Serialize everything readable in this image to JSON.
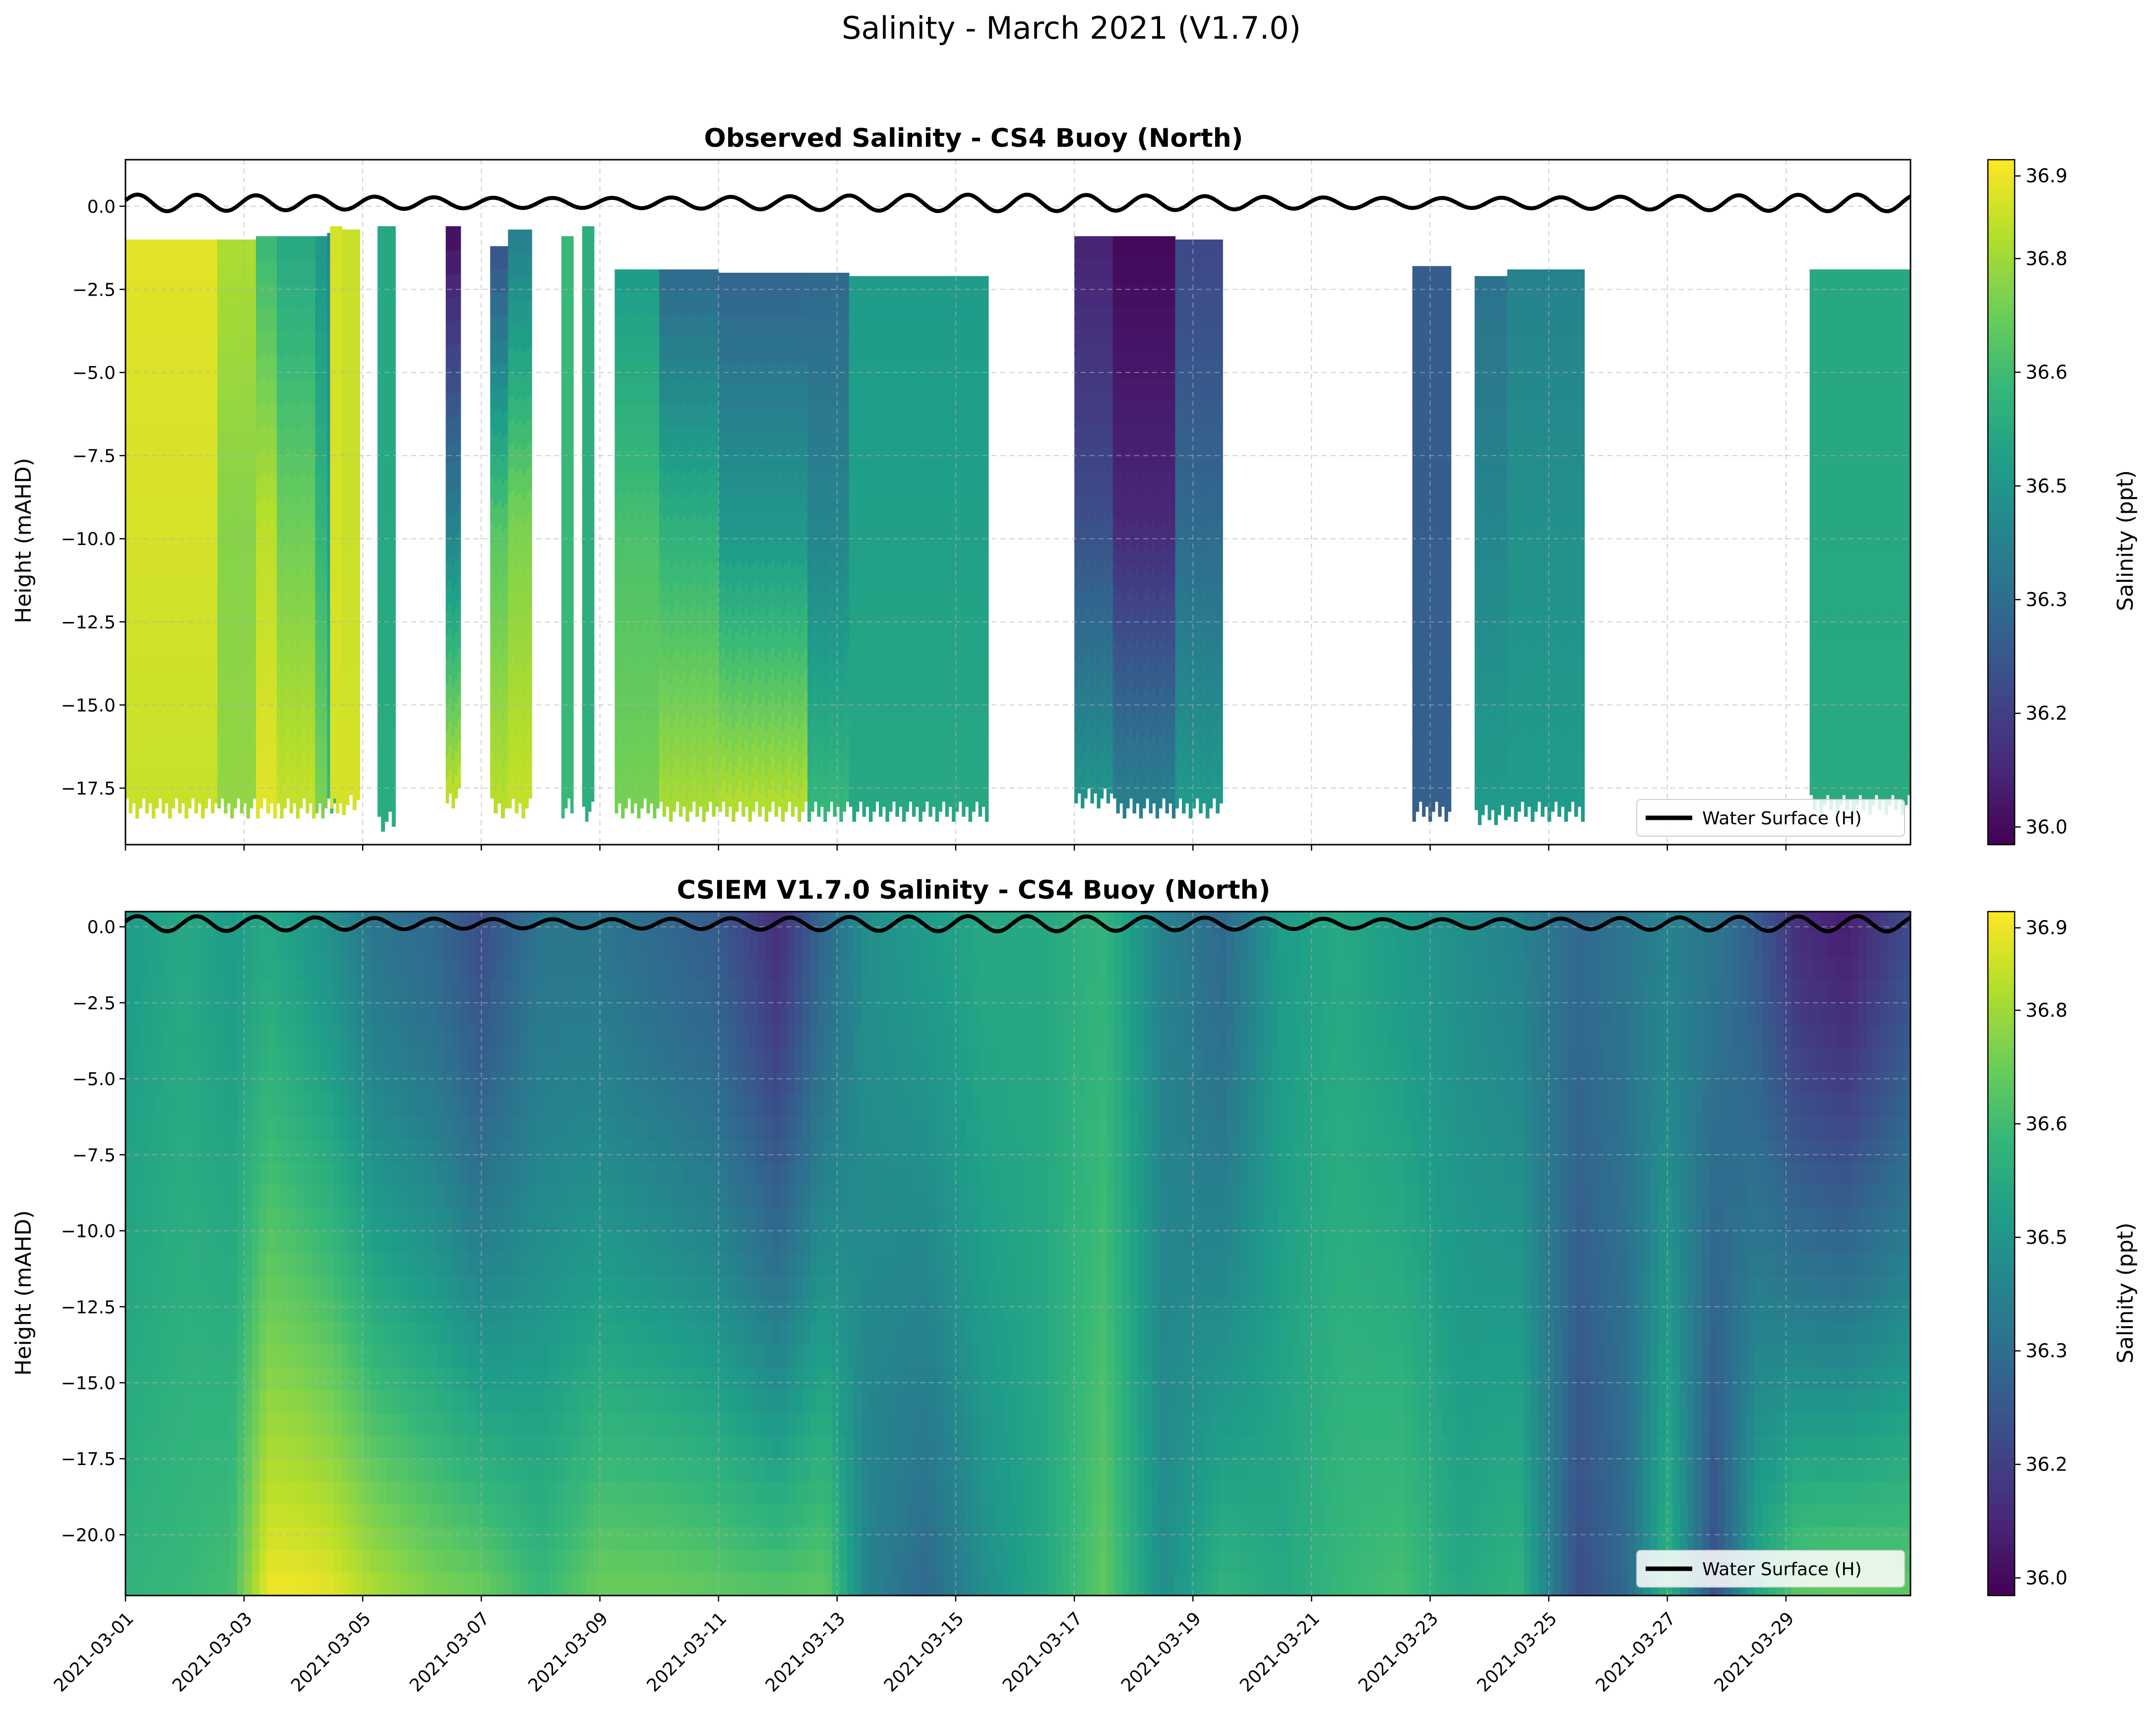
{
  "figure": {
    "title": "Salinity - March 2021 (V1.7.0)"
  },
  "chart_data": [
    {
      "type": "heatmap",
      "title": "Observed Salinity - CS4 Buoy (North)",
      "xlabel": "",
      "ylabel": "Height (mAHD)",
      "x_range_days": [
        0,
        30.1
      ],
      "ylim": [
        -19.2,
        1.4
      ],
      "yticks": [
        0.0,
        -2.5,
        -5.0,
        -7.5,
        -10.0,
        -12.5,
        -15.0,
        -17.5
      ],
      "ytick_labels": [
        "0.0",
        "−2.5",
        "−5.0",
        "−7.5",
        "−10.0",
        "−12.5",
        "−15.0",
        "−17.5"
      ],
      "grid": true,
      "colorbar": {
        "label": "Salinity (ppt)",
        "range": [
          35.97,
          36.94
        ],
        "ticks": [
          "36.0",
          "36.2",
          "36.3",
          "36.5",
          "36.6",
          "36.8",
          "36.9"
        ],
        "tick_values": [
          35.995,
          36.156,
          36.317,
          36.478,
          36.639,
          36.8,
          36.917
        ],
        "colormap": [
          "#440154",
          "#482878",
          "#3e4989",
          "#31688e",
          "#26828e",
          "#1f9e89",
          "#35b779",
          "#6ece58",
          "#b5de2b",
          "#fde725"
        ]
      },
      "legend": {
        "label": "Water Surface (H)",
        "location": "lower right",
        "color": "#000000"
      },
      "water_surface": {
        "mean": 0.1,
        "amplitude": 0.25,
        "period_days": 1.0
      },
      "observation_segments": [
        {
          "start": 0.0,
          "end": 1.55,
          "top": -1.0,
          "bottom": -17.8,
          "values": [
            36.9,
            36.88,
            36.86
          ]
        },
        {
          "start": 1.55,
          "end": 2.2,
          "top": -1.0,
          "bottom": -17.8,
          "values": [
            36.82,
            36.76,
            36.78
          ]
        },
        {
          "start": 2.2,
          "end": 2.55,
          "top": -0.9,
          "bottom": -17.8,
          "values": [
            36.62,
            36.84,
            36.9
          ]
        },
        {
          "start": 2.55,
          "end": 3.2,
          "top": -0.9,
          "bottom": -17.8,
          "values": [
            36.55,
            36.72,
            36.86
          ]
        },
        {
          "start": 3.2,
          "end": 3.45,
          "top": -0.9,
          "bottom": -17.8,
          "values": [
            36.48,
            36.6,
            36.75
          ]
        },
        {
          "start": 3.4,
          "end": 3.55,
          "top": -0.8,
          "bottom": -17.8,
          "values": [
            36.42,
            36.52,
            36.62
          ]
        },
        {
          "start": 3.45,
          "end": 3.65,
          "top": -0.6,
          "bottom": -17.8,
          "values": [
            36.88,
            36.88,
            36.88
          ]
        },
        {
          "start": 3.65,
          "end": 3.95,
          "top": -0.7,
          "bottom": -17.7,
          "values": [
            36.86,
            36.86,
            36.88
          ]
        },
        {
          "start": 4.25,
          "end": 4.55,
          "top": -0.6,
          "bottom": -18.2,
          "values": [
            36.55,
            36.55,
            36.57
          ]
        },
        {
          "start": 5.4,
          "end": 5.65,
          "top": -0.6,
          "bottom": -17.5,
          "values": [
            36.0,
            36.38,
            36.86
          ]
        },
        {
          "start": 6.15,
          "end": 6.45,
          "top": -1.2,
          "bottom": -17.8,
          "values": [
            36.22,
            36.68,
            36.84
          ]
        },
        {
          "start": 6.45,
          "end": 6.85,
          "top": -0.7,
          "bottom": -17.8,
          "values": [
            36.38,
            36.74,
            36.86
          ]
        },
        {
          "start": 7.35,
          "end": 7.55,
          "top": -0.9,
          "bottom": -17.8,
          "values": [
            36.62,
            36.62,
            36.62
          ]
        },
        {
          "start": 7.7,
          "end": 7.9,
          "top": -0.6,
          "bottom": -17.9,
          "values": [
            36.58,
            36.58,
            36.58
          ]
        },
        {
          "start": 8.25,
          "end": 9.0,
          "top": -1.9,
          "bottom": -17.8,
          "values": [
            36.5,
            36.66,
            36.74
          ]
        },
        {
          "start": 9.0,
          "end": 10.0,
          "top": -1.9,
          "bottom": -17.9,
          "values": [
            36.3,
            36.6,
            36.82
          ]
        },
        {
          "start": 10.0,
          "end": 11.5,
          "top": -2.0,
          "bottom": -17.9,
          "values": [
            36.28,
            36.5,
            36.84
          ]
        },
        {
          "start": 11.5,
          "end": 12.2,
          "top": -2.0,
          "bottom": -17.9,
          "values": [
            36.3,
            36.42,
            36.62
          ]
        },
        {
          "start": 12.2,
          "end": 14.55,
          "top": -2.1,
          "bottom": -17.9,
          "values": [
            36.5,
            36.52,
            36.55
          ]
        },
        {
          "start": 16.0,
          "end": 16.65,
          "top": -0.9,
          "bottom": -17.5,
          "values": [
            36.06,
            36.2,
            36.48
          ]
        },
        {
          "start": 16.65,
          "end": 17.7,
          "top": -0.9,
          "bottom": -17.8,
          "values": [
            35.99,
            36.08,
            36.4
          ]
        },
        {
          "start": 17.7,
          "end": 18.5,
          "top": -1.0,
          "bottom": -17.8,
          "values": [
            36.18,
            36.3,
            36.5
          ]
        },
        {
          "start": 21.7,
          "end": 22.35,
          "top": -1.8,
          "bottom": -17.9,
          "values": [
            36.26,
            36.26,
            36.27
          ]
        },
        {
          "start": 22.75,
          "end": 23.3,
          "top": -2.1,
          "bottom": -18.0,
          "values": [
            36.34,
            36.42,
            36.5
          ]
        },
        {
          "start": 23.3,
          "end": 24.6,
          "top": -1.9,
          "bottom": -17.9,
          "values": [
            36.4,
            36.46,
            36.5
          ]
        },
        {
          "start": 28.4,
          "end": 30.1,
          "top": -1.9,
          "bottom": -17.7,
          "values": [
            36.55,
            36.55,
            36.56
          ]
        }
      ]
    },
    {
      "type": "heatmap",
      "title": "CSIEM V1.7.0 Salinity - CS4 Buoy (North)",
      "xlabel": "",
      "ylabel": "Height (mAHD)",
      "x_range_days": [
        0,
        30.1
      ],
      "ylim": [
        -22.0,
        0.5
      ],
      "yticks": [
        0.0,
        -2.5,
        -5.0,
        -7.5,
        -10.0,
        -12.5,
        -15.0,
        -17.5,
        -20.0
      ],
      "ytick_labels": [
        "0.0",
        "−2.5",
        "−5.0",
        "−7.5",
        "−10.0",
        "−12.5",
        "−15.0",
        "−17.5",
        "−20.0"
      ],
      "xticks_days": [
        0,
        2,
        4,
        6,
        8,
        10,
        12,
        14,
        16,
        18,
        20,
        22,
        24,
        26,
        28
      ],
      "xtick_labels": [
        "2021-03-01",
        "2021-03-03",
        "2021-03-05",
        "2021-03-07",
        "2021-03-09",
        "2021-03-11",
        "2021-03-13",
        "2021-03-15",
        "2021-03-17",
        "2021-03-19",
        "2021-03-21",
        "2021-03-23",
        "2021-03-25",
        "2021-03-27",
        "2021-03-29"
      ],
      "grid": true,
      "colorbar": {
        "label": "Salinity (ppt)",
        "range": [
          35.97,
          36.94
        ],
        "ticks": [
          "36.0",
          "36.2",
          "36.3",
          "36.5",
          "36.6",
          "36.8",
          "36.9"
        ],
        "tick_values": [
          35.995,
          36.156,
          36.317,
          36.478,
          36.639,
          36.8,
          36.917
        ]
      },
      "legend": {
        "label": "Water Surface (H)",
        "location": "lower right",
        "color": "#000000"
      },
      "water_surface": {
        "mean": 0.1,
        "amplitude": 0.25,
        "period_days": 1.0
      },
      "model_profiles": [
        {
          "day": 0.0,
          "surface": 36.5,
          "bottom": 36.6
        },
        {
          "day": 1.0,
          "surface": 36.55,
          "bottom": 36.62
        },
        {
          "day": 1.8,
          "surface": 36.5,
          "bottom": 36.65
        },
        {
          "day": 2.4,
          "surface": 36.55,
          "bottom": 36.92
        },
        {
          "day": 3.0,
          "surface": 36.5,
          "bottom": 36.92
        },
        {
          "day": 3.5,
          "surface": 36.45,
          "bottom": 36.9
        },
        {
          "day": 4.2,
          "surface": 36.35,
          "bottom": 36.82
        },
        {
          "day": 5.2,
          "surface": 36.3,
          "bottom": 36.75
        },
        {
          "day": 6.0,
          "surface": 36.2,
          "bottom": 36.72
        },
        {
          "day": 7.0,
          "surface": 36.35,
          "bottom": 36.62
        },
        {
          "day": 8.0,
          "surface": 36.35,
          "bottom": 36.72
        },
        {
          "day": 9.0,
          "surface": 36.3,
          "bottom": 36.72
        },
        {
          "day": 10.0,
          "surface": 36.25,
          "bottom": 36.7
        },
        {
          "day": 11.0,
          "surface": 36.1,
          "bottom": 36.68
        },
        {
          "day": 11.8,
          "surface": 36.3,
          "bottom": 36.7
        },
        {
          "day": 12.5,
          "surface": 36.45,
          "bottom": 36.4
        },
        {
          "day": 13.5,
          "surface": 36.5,
          "bottom": 36.3
        },
        {
          "day": 14.5,
          "surface": 36.55,
          "bottom": 36.45
        },
        {
          "day": 15.5,
          "surface": 36.55,
          "bottom": 36.55
        },
        {
          "day": 16.5,
          "surface": 36.6,
          "bottom": 36.7
        },
        {
          "day": 17.5,
          "surface": 36.4,
          "bottom": 36.45
        },
        {
          "day": 18.5,
          "surface": 36.3,
          "bottom": 36.6
        },
        {
          "day": 19.5,
          "surface": 36.5,
          "bottom": 36.55
        },
        {
          "day": 20.5,
          "surface": 36.55,
          "bottom": 36.62
        },
        {
          "day": 21.5,
          "surface": 36.5,
          "bottom": 36.65
        },
        {
          "day": 22.5,
          "surface": 36.45,
          "bottom": 36.55
        },
        {
          "day": 23.5,
          "surface": 36.4,
          "bottom": 36.6
        },
        {
          "day": 24.5,
          "surface": 36.3,
          "bottom": 36.2
        },
        {
          "day": 25.3,
          "surface": 36.35,
          "bottom": 36.3
        },
        {
          "day": 26.0,
          "surface": 36.4,
          "bottom": 36.6
        },
        {
          "day": 26.8,
          "surface": 36.35,
          "bottom": 36.2
        },
        {
          "day": 27.5,
          "surface": 36.25,
          "bottom": 36.55
        },
        {
          "day": 28.2,
          "surface": 36.1,
          "bottom": 36.7
        },
        {
          "day": 29.0,
          "surface": 36.05,
          "bottom": 36.72
        },
        {
          "day": 30.1,
          "surface": 36.2,
          "bottom": 36.7
        }
      ]
    }
  ]
}
